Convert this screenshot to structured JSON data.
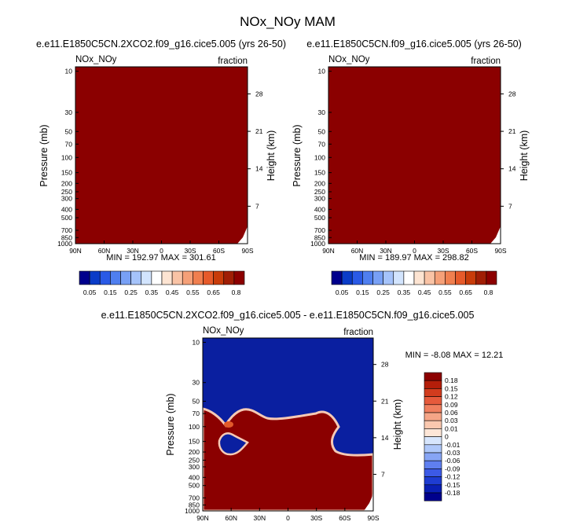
{
  "title": "NOx_NOy MAM",
  "panels": [
    {
      "case": "e.e11.E1850C5CN.2XCO2.f09_g16.cice5.005 (yrs 26-50)",
      "var": "NOx_NOy",
      "units": "fraction",
      "minmax": "MIN = 192.97  MAX = 301.61"
    },
    {
      "case": "e.e11.E1850C5CN.f09_g16.cice5.005 (yrs 26-50)",
      "var": "NOx_NOy",
      "units": "fraction",
      "minmax": "MIN = 189.97  MAX = 298.82"
    },
    {
      "case": "e.e11.E1850C5CN.2XCO2.f09_g16.cice5.005 - e.e11.E1850C5CN.f09_g16.cice5.005",
      "var": "NOx_NOy",
      "units": "fraction",
      "minmax": "MIN = -8.08  MAX = 12.21"
    }
  ],
  "colors": {
    "dark_red": "#8b0000",
    "dark_blue": "#0a1fa0",
    "top_palette": [
      "#00008c",
      "#0a3cc8",
      "#2a5ae6",
      "#4f7ff0",
      "#78a0f5",
      "#a5c3fa",
      "#d2e4fd",
      "#ffffff",
      "#fde4d2",
      "#f9c3a5",
      "#f5a078",
      "#f07f4f",
      "#e65a2a",
      "#c83c0a",
      "#a01e05",
      "#8c0000"
    ],
    "diff_palette": [
      "#00008c",
      "#0a1fb4",
      "#1e3cd2",
      "#3c5ae6",
      "#5f7ff0",
      "#87a5f5",
      "#afc8fa",
      "#d7e6fd",
      "#fde6d7",
      "#fac8af",
      "#f5a587",
      "#f07f5f",
      "#e65a3c",
      "#d23c1e",
      "#b41e0a",
      "#8c0000"
    ]
  },
  "chart_data": [
    {
      "type": "heatmap",
      "title": "e.e11.E1850C5CN.2XCO2.f09_g16.cice5.005 (yrs 26-50)",
      "ylabel": "Pressure (mb)",
      "ylabel_right": "Height (km)",
      "x_ticks": [
        "90N",
        "60N",
        "30N",
        "0",
        "30S",
        "60S",
        "90S"
      ],
      "y_ticks": [
        "10",
        "30",
        "50",
        "70",
        "100",
        "150",
        "200",
        "250",
        "300",
        "400",
        "500",
        "700",
        "850",
        "1000"
      ],
      "y_ticks_right": [
        "28",
        "21",
        "14",
        "7"
      ],
      "colorbar_labels": [
        "0.05",
        "0.15",
        "0.25",
        "0.35",
        "0.45",
        "0.55",
        "0.65",
        "0.8"
      ],
      "min": 192.97,
      "max": 301.61
    },
    {
      "type": "heatmap",
      "title": "e.e11.E1850C5CN.f09_g16.cice5.005 (yrs 26-50)",
      "ylabel": "Pressure (mb)",
      "ylabel_right": "Height (km)",
      "x_ticks": [
        "90N",
        "60N",
        "30N",
        "0",
        "30S",
        "60S",
        "90S"
      ],
      "y_ticks": [
        "10",
        "30",
        "50",
        "70",
        "100",
        "150",
        "200",
        "250",
        "300",
        "400",
        "500",
        "700",
        "850",
        "1000"
      ],
      "y_ticks_right": [
        "28",
        "21",
        "14",
        "7"
      ],
      "colorbar_labels": [
        "0.05",
        "0.15",
        "0.25",
        "0.35",
        "0.45",
        "0.55",
        "0.65",
        "0.8"
      ],
      "min": 189.97,
      "max": 298.82
    },
    {
      "type": "heatmap",
      "title": "e.e11.E1850C5CN.2XCO2.f09_g16.cice5.005 - e.e11.E1850C5CN.f09_g16.cice5.005",
      "ylabel": "Pressure (mb)",
      "ylabel_right": "Height (km)",
      "x_ticks": [
        "90N",
        "60N",
        "30N",
        "0",
        "30S",
        "60S",
        "90S"
      ],
      "y_ticks": [
        "10",
        "30",
        "50",
        "70",
        "100",
        "150",
        "200",
        "250",
        "300",
        "400",
        "500",
        "700",
        "850",
        "1000"
      ],
      "y_ticks_right": [
        "28",
        "21",
        "14",
        "7"
      ],
      "colorbar_labels": [
        "0.18",
        "0.15",
        "0.12",
        "0.09",
        "0.06",
        "0.03",
        "0.01",
        "0",
        "-0.01",
        "-0.03",
        "-0.06",
        "-0.09",
        "-0.12",
        "-0.15",
        "-0.18"
      ],
      "min": -8.08,
      "max": 12.21
    }
  ]
}
